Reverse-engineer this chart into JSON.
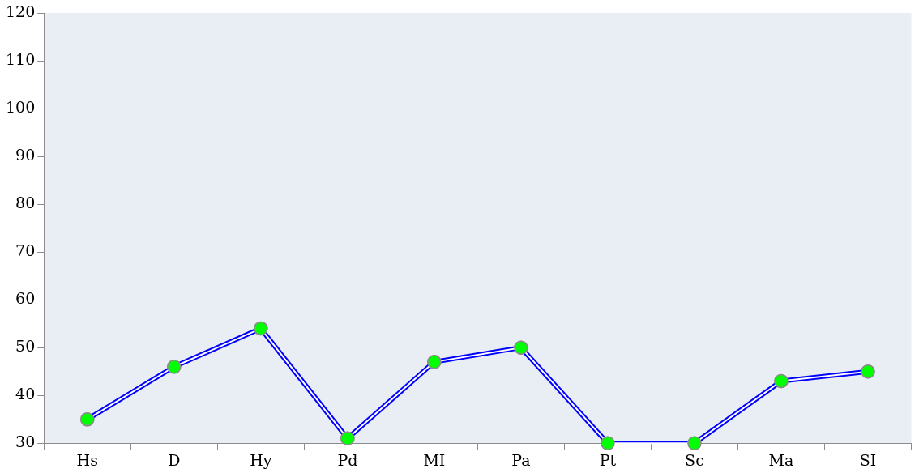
{
  "chart_data": {
    "type": "line",
    "categories": [
      "Hs",
      "D",
      "Hy",
      "Pd",
      "MI",
      "Pa",
      "Pt",
      "Sc",
      "Ma",
      "SI"
    ],
    "series": [
      {
        "color": "#0000ff",
        "values": [
          35,
          46,
          54,
          31,
          47,
          50,
          30,
          30,
          43,
          45
        ]
      }
    ],
    "ylim": [
      30,
      120
    ],
    "yticks": [
      30,
      40,
      50,
      60,
      70,
      80,
      90,
      100,
      110,
      120
    ],
    "grid": false,
    "legend": false,
    "marker": "circle",
    "line_style": "solid"
  }
}
